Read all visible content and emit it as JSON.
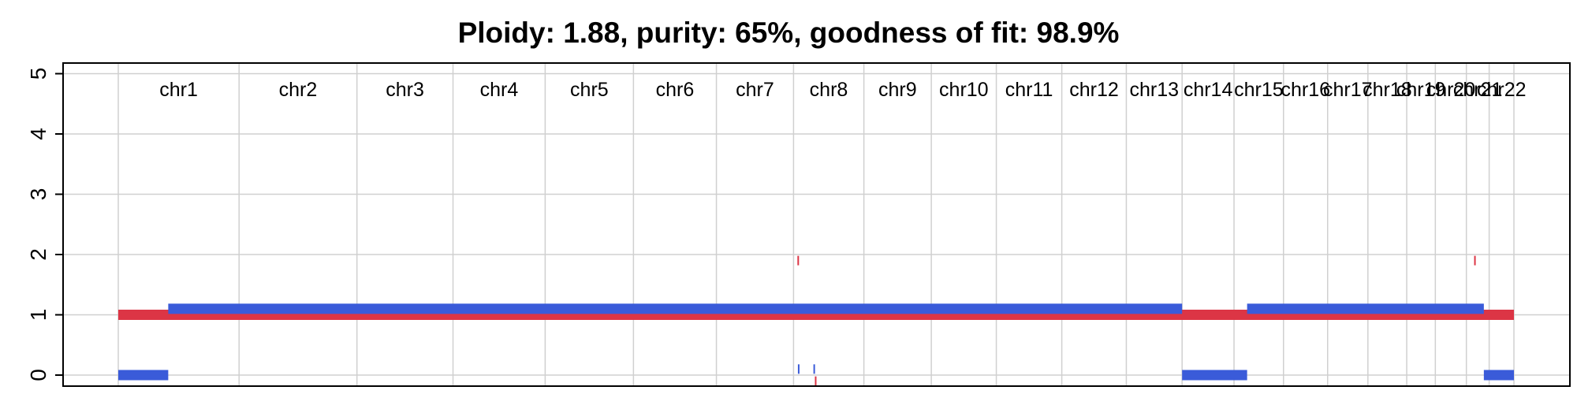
{
  "chart_data": {
    "type": "segments",
    "title": "Ploidy: 1.88, purity: 65%, goodness of fit: 98.9%",
    "xlabel": "",
    "ylabel": "",
    "ylim": [
      0,
      5
    ],
    "yticks": [
      0,
      1,
      2,
      3,
      4,
      5
    ],
    "grid": true,
    "chromosomes": [
      {
        "name": "chr1",
        "start": 0,
        "end": 249
      },
      {
        "name": "chr2",
        "start": 249,
        "end": 492
      },
      {
        "name": "chr3",
        "start": 492,
        "end": 690
      },
      {
        "name": "chr4",
        "start": 690,
        "end": 880
      },
      {
        "name": "chr5",
        "start": 880,
        "end": 1062
      },
      {
        "name": "chr6",
        "start": 1062,
        "end": 1233
      },
      {
        "name": "chr7",
        "start": 1233,
        "end": 1392
      },
      {
        "name": "chr8",
        "start": 1392,
        "end": 1537
      },
      {
        "name": "chr9",
        "start": 1537,
        "end": 1676
      },
      {
        "name": "chr10",
        "start": 1676,
        "end": 1810
      },
      {
        "name": "chr11",
        "start": 1810,
        "end": 1945
      },
      {
        "name": "chr12",
        "start": 1945,
        "end": 2078
      },
      {
        "name": "chr13",
        "start": 2078,
        "end": 2193
      },
      {
        "name": "chr14",
        "start": 2193,
        "end": 2300
      },
      {
        "name": "chr15",
        "start": 2300,
        "end": 2402
      },
      {
        "name": "chr16",
        "start": 2402,
        "end": 2493
      },
      {
        "name": "chr17",
        "start": 2493,
        "end": 2576
      },
      {
        "name": "chr18",
        "start": 2576,
        "end": 2656
      },
      {
        "name": "chr19",
        "start": 2656,
        "end": 2715
      },
      {
        "name": "chr20",
        "start": 2715,
        "end": 2779
      },
      {
        "name": "chr21",
        "start": 2779,
        "end": 2826
      },
      {
        "name": "chr22",
        "start": 2826,
        "end": 2877
      }
    ],
    "xlim": [
      0,
      2877
    ],
    "series": [
      {
        "color": "#DC3545",
        "segments": [
          {
            "start": 0,
            "end": 2877,
            "value": 1
          },
          {
            "start": 1400,
            "end": 1402,
            "value": 1.9
          },
          {
            "start": 2795,
            "end": 2797,
            "value": 1.9
          },
          {
            "start": 1436,
            "end": 1438,
            "value": -0.1
          }
        ]
      },
      {
        "color": "#3A5BD9",
        "segments": [
          {
            "start": 0,
            "end": 103,
            "value": 0
          },
          {
            "start": 103,
            "end": 2193,
            "value": 1.1
          },
          {
            "start": 1401,
            "end": 1403,
            "value": 0.1
          },
          {
            "start": 1433,
            "end": 1435,
            "value": 0.1
          },
          {
            "start": 2193,
            "end": 2327,
            "value": 0
          },
          {
            "start": 2327,
            "end": 2815,
            "value": 1.1
          },
          {
            "start": 2815,
            "end": 2877,
            "value": 0
          }
        ]
      }
    ]
  }
}
